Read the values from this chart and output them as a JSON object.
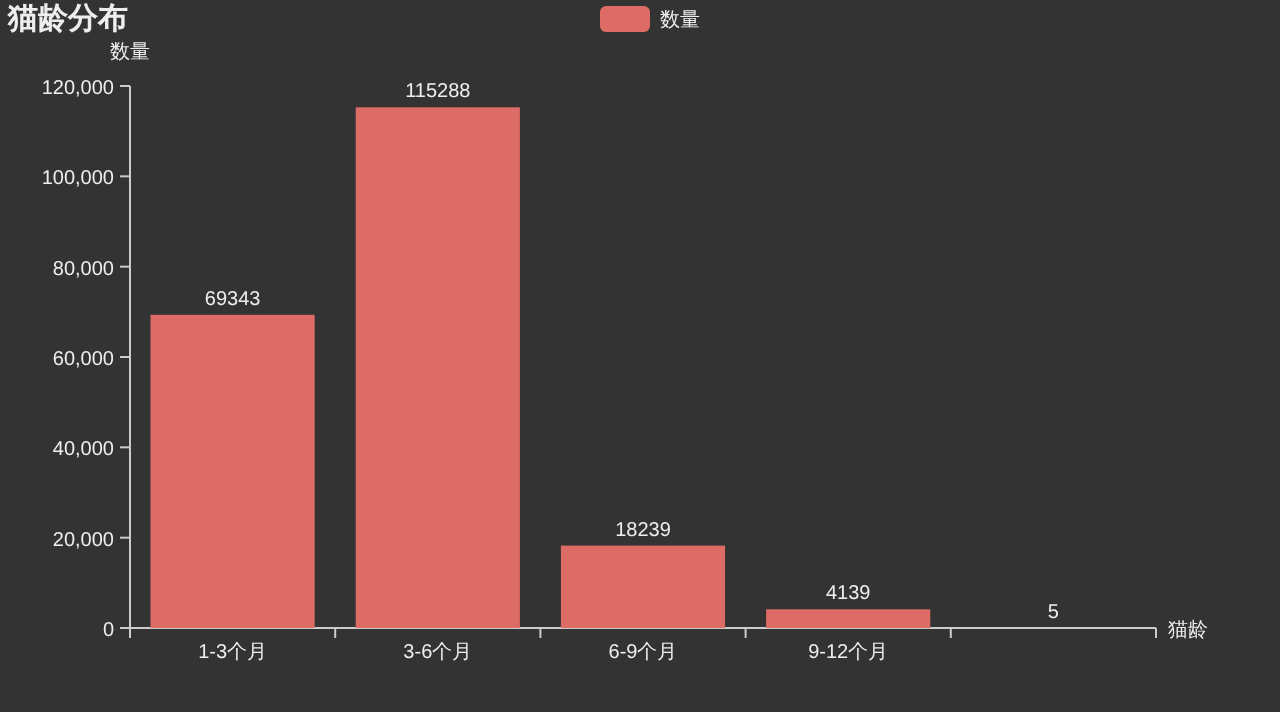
{
  "chart_data": {
    "type": "bar",
    "title": "猫龄分布",
    "ylabel": "数量",
    "xlabel": "猫龄",
    "categories": [
      "1-3个月",
      "3-6个月",
      "6-9个月",
      "9-12个月",
      null
    ],
    "series": [
      {
        "name": "数量",
        "color": "#dd6b66",
        "values": [
          69343,
          115288,
          18239,
          4139,
          5
        ]
      }
    ],
    "ylim": [
      0,
      120000
    ],
    "yticks": [
      0,
      {
        "value": 20000,
        "label": "20,000"
      },
      {
        "value": 40000,
        "label": "40,000"
      },
      {
        "value": 60000,
        "label": "60,000"
      },
      {
        "value": 80000,
        "label": "80,000"
      },
      {
        "value": 100000,
        "label": "100,000"
      },
      {
        "value": 120000,
        "label": "120,000"
      }
    ],
    "data_labels": true,
    "legend": "top",
    "grid": false
  }
}
